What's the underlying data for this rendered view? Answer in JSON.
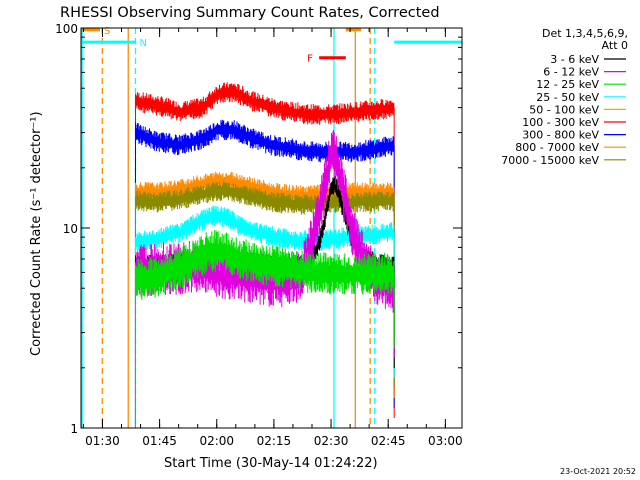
{
  "chart_data": {
    "type": "line",
    "title": "RHESSI Observing Summary Count Rates, Corrected",
    "xlabel": "Start Time (30-May-14 01:24:22)",
    "ylabel": "Corrected Count Rate (s⁻¹ detector⁻¹)",
    "x_unit": "minutes since 01:24:22",
    "xlim": [
      0,
      100
    ],
    "ylim": [
      1,
      100
    ],
    "yscale": "log",
    "xticks": [
      {
        "value": 5.63,
        "label": "01:30"
      },
      {
        "value": 20.63,
        "label": "01:45"
      },
      {
        "value": 35.63,
        "label": "02:00"
      },
      {
        "value": 50.63,
        "label": "02:15"
      },
      {
        "value": 65.63,
        "label": "02:30"
      },
      {
        "value": 80.63,
        "label": "02:45"
      },
      {
        "value": 95.63,
        "label": "03:00"
      }
    ],
    "yticks": [
      {
        "value": 1,
        "label": "1"
      },
      {
        "value": 10,
        "label": "10"
      },
      {
        "value": 100,
        "label": "100"
      }
    ],
    "legend": {
      "header": [
        "Det 1,3,4,5,6,9,",
        "Att 0"
      ],
      "entries": [
        {
          "label": "3 - 6 keV",
          "color": "#000000"
        },
        {
          "label": "6 - 12 keV",
          "color": "#e000e0"
        },
        {
          "label": "12 - 25 keV",
          "color": "#00e000"
        },
        {
          "label": "25 - 50 keV",
          "color": "#00ffff"
        },
        {
          "label": "50 - 100 keV",
          "color": "#e0b000"
        },
        {
          "label": "100 - 300 keV",
          "color": "#ff0000"
        },
        {
          "label": "300 - 800 keV",
          "color": "#0000ff"
        },
        {
          "label": "800 - 7000 keV",
          "color": "#ff8c00"
        },
        {
          "label": "7000 - 15000 keV",
          "color": "#8a8a00"
        }
      ]
    },
    "series": [
      {
        "name": "100 - 300 keV",
        "color": "#ff0000",
        "x": [
          14.3,
          20,
          26,
          32,
          36,
          40,
          45,
          50,
          55,
          60,
          66,
          72,
          78,
          82.2
        ],
        "y": [
          43,
          41,
          38,
          40,
          47,
          48,
          43,
          40,
          38,
          37,
          37,
          38,
          39,
          40
        ]
      },
      {
        "name": "300 - 800 keV",
        "color": "#0000ff",
        "x": [
          14.3,
          20,
          26,
          32,
          36,
          40,
          45,
          50,
          55,
          60,
          66,
          72,
          78,
          82.2
        ],
        "y": [
          30,
          27,
          26,
          28,
          31,
          31,
          28,
          26,
          25,
          24,
          24,
          24,
          25,
          26
        ]
      },
      {
        "name": "800 - 7000 keV",
        "color": "#ff8c00",
        "x": [
          14.3,
          20,
          26,
          32,
          36,
          40,
          45,
          50,
          55,
          60,
          66,
          72,
          78,
          82.2
        ],
        "y": [
          15.2,
          15,
          15.6,
          16.5,
          17.2,
          17,
          16,
          15,
          14.6,
          14.5,
          14.8,
          15,
          15,
          15
        ]
      },
      {
        "name": "7000 - 15000 keV",
        "color": "#8a8a00",
        "x": [
          14.3,
          20,
          26,
          32,
          36,
          40,
          45,
          50,
          55,
          60,
          66,
          72,
          78,
          82.2
        ],
        "y": [
          13.7,
          13.4,
          13.9,
          14.8,
          15.3,
          15.2,
          14.3,
          13.5,
          13.2,
          13.1,
          13.3,
          13.5,
          13.6,
          13.6
        ]
      },
      {
        "name": "25 - 50 keV",
        "color": "#00ffff",
        "x": [
          14.3,
          20,
          26,
          30,
          34,
          38,
          42,
          48,
          54,
          60,
          66,
          72,
          78,
          82.2
        ],
        "y": [
          8.5,
          8.8,
          9.5,
          10.5,
          11.5,
          11.3,
          10.2,
          9.3,
          8.8,
          8.6,
          8.8,
          9.1,
          9.3,
          9.5
        ]
      },
      {
        "name": "3 - 6 keV",
        "color": "#000000",
        "x": [
          14.3,
          20,
          30,
          40,
          50,
          58,
          62,
          64,
          65.5,
          67,
          69,
          71,
          74,
          78,
          82.2
        ],
        "y": [
          6.5,
          6.6,
          6.7,
          6.8,
          6.6,
          6.5,
          7.8,
          11,
          15.5,
          16.5,
          12,
          9,
          7.2,
          6.6,
          6.5
        ]
      },
      {
        "name": "6 - 12 keV",
        "color": "#e000e0",
        "x": [
          14.3,
          20,
          30,
          38,
          46,
          54,
          58,
          61,
          64,
          66,
          68,
          71,
          74,
          78,
          82.2
        ],
        "y": [
          6.0,
          6.2,
          6.4,
          6.0,
          5.6,
          5.4,
          6.0,
          9,
          16,
          25,
          18,
          10,
          7,
          5.5,
          5.0
        ]
      },
      {
        "name": "12 - 25 keV",
        "color": "#00e000",
        "x": [
          14.3,
          20,
          26,
          30,
          34,
          38,
          42,
          48,
          54,
          60,
          66,
          72,
          78,
          82.2
        ],
        "y": [
          5.5,
          5.7,
          6.3,
          7.0,
          7.7,
          7.6,
          7.0,
          6.6,
          6.3,
          6.0,
          5.9,
          5.9,
          5.9,
          5.9
        ]
      }
    ],
    "bars": [
      {
        "label": "S",
        "color": "#ff8c00",
        "segments": [
          [
            0.4,
            5.0
          ],
          [
            69.5,
            73.5
          ]
        ],
        "y": 98
      },
      {
        "label": "N",
        "color": "#00ffff",
        "segments": [
          [
            0.4,
            14.3
          ],
          [
            82.2,
            100
          ]
        ],
        "y": 85
      },
      {
        "label": "F",
        "color": "#ff0000",
        "segments": [
          [
            62.5,
            69.5
          ]
        ],
        "y": 71
      }
    ],
    "vlines": [
      {
        "x": 0.3,
        "color": "#00ffff",
        "style": "solid"
      },
      {
        "x": 5.6,
        "color": "#ff8c00",
        "style": "dashed"
      },
      {
        "x": 12.4,
        "color": "#ff8c00",
        "style": "solid"
      },
      {
        "x": 14.3,
        "color": "#00ffff",
        "style": "dashed"
      },
      {
        "x": 66.4,
        "color": "#00ffff",
        "style": "solid"
      },
      {
        "x": 72.0,
        "color": "#ff8c00",
        "style": "solid"
      },
      {
        "x": 75.9,
        "color": "#ff8c00",
        "style": "dashed"
      },
      {
        "x": 77.1,
        "color": "#00ffff",
        "style": "dashed"
      }
    ]
  },
  "footer": {
    "date": "23-Oct-2021 20:52"
  }
}
